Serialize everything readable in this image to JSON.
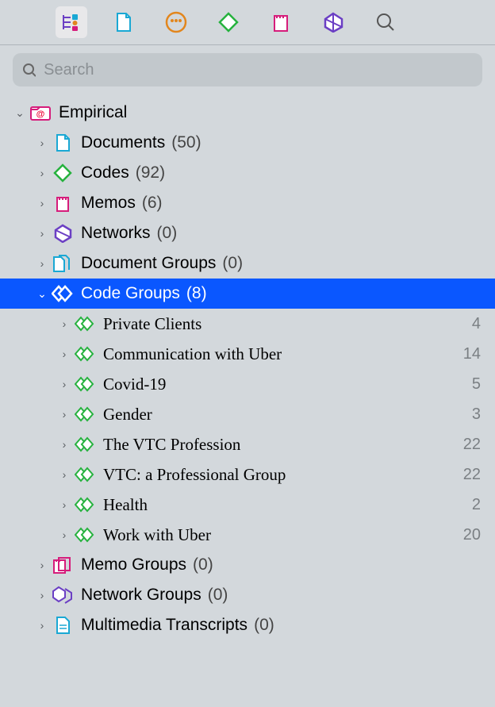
{
  "colors": {
    "background": "#d3d8dc",
    "selected_row": "#0a57ff",
    "doc_cyan": "#1aa8d4",
    "code_green": "#26b23e",
    "memo_magenta": "#d61c7b",
    "network_purple": "#6b3fc4",
    "orange": "#e2861d",
    "search_bg": "#c2c8cc",
    "divider": "#aeb4b9",
    "muted_text": "#7a7f83"
  },
  "toolbar": {
    "selected_index": 0,
    "items": [
      {
        "name": "navigator-icon"
      },
      {
        "name": "document-icon"
      },
      {
        "name": "people-icon"
      },
      {
        "name": "code-icon"
      },
      {
        "name": "memo-icon"
      },
      {
        "name": "network-icon"
      },
      {
        "name": "search-icon"
      }
    ]
  },
  "search": {
    "placeholder": "Search"
  },
  "tree": {
    "root": {
      "label": "Empirical",
      "expanded": true
    },
    "items": [
      {
        "icon": "document",
        "label": "Documents",
        "count": 50,
        "expanded": false
      },
      {
        "icon": "code",
        "label": "Codes",
        "count": 92,
        "expanded": false
      },
      {
        "icon": "memo",
        "label": "Memos",
        "count": 6,
        "expanded": false
      },
      {
        "icon": "network",
        "label": "Networks",
        "count": 0,
        "expanded": false
      },
      {
        "icon": "doc-group",
        "label": "Document Groups",
        "count": 0,
        "expanded": false
      },
      {
        "icon": "code-group",
        "label": "Code Groups",
        "count": 8,
        "expanded": true,
        "selected": true,
        "children": [
          {
            "label": "Private Clients",
            "count": 4
          },
          {
            "label": "Communication with Uber",
            "count": 14
          },
          {
            "label": "Covid-19",
            "count": 5
          },
          {
            "label": "Gender",
            "count": 3
          },
          {
            "label": "The VTC Profession",
            "count": 22
          },
          {
            "label": "VTC: a Professional Group",
            "count": 22
          },
          {
            "label": "Health",
            "count": 2
          },
          {
            "label": "Work with Uber",
            "count": 20
          }
        ]
      },
      {
        "icon": "memo-group",
        "label": "Memo Groups",
        "count": 0,
        "expanded": false
      },
      {
        "icon": "network-group",
        "label": "Network Groups",
        "count": 0,
        "expanded": false
      },
      {
        "icon": "transcript",
        "label": "Multimedia Transcripts",
        "count": 0,
        "expanded": false
      }
    ]
  }
}
